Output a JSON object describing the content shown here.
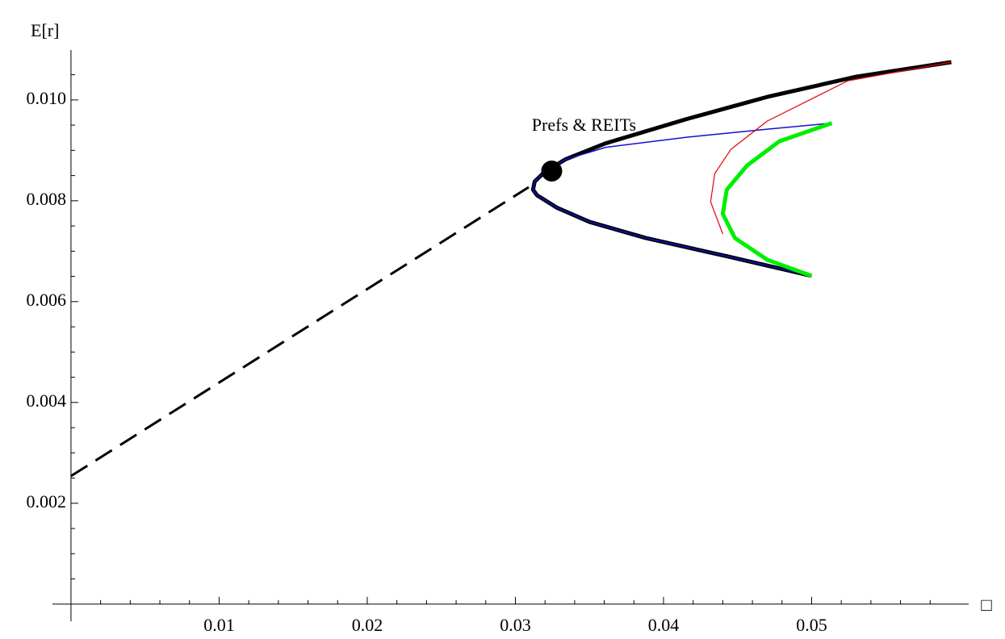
{
  "chart_data": {
    "type": "line",
    "y_label": "E[r]",
    "x_label": "□",
    "xlim": [
      -0.00125,
      0.0606
    ],
    "ylim": [
      -0.00034,
      0.01099
    ],
    "xticks": [
      0.01,
      0.02,
      0.03,
      0.04,
      0.05
    ],
    "yticks": [
      0.002,
      0.004,
      0.006,
      0.008,
      {
        "value": 0.01,
        "label": "0.010"
      }
    ],
    "xminorticks": [
      0.002,
      0.004,
      0.006,
      0.008,
      0.012,
      0.014,
      0.016,
      0.018,
      0.022,
      0.024,
      0.026,
      0.028,
      0.032,
      0.034,
      0.036,
      0.038,
      0.042,
      0.044,
      0.046,
      0.048,
      0.052,
      0.054,
      0.056,
      0.058
    ],
    "yminorticks": [
      0.0005,
      0.001,
      0.0015,
      0.0025,
      0.003,
      0.0035,
      0.0045,
      0.005,
      0.0055,
      0.0065,
      0.007,
      0.0075,
      0.0085,
      0.009,
      0.0095,
      0.0105
    ],
    "series": [
      {
        "color": "#000000",
        "dashed": true,
        "width": 3,
        "x": [
          0,
          0.0309
        ],
        "values": [
          0.00254,
          0.00827
        ]
      },
      {
        "color": "#000000",
        "dashed": false,
        "width": 5,
        "x": [
          0.05,
          0.04427,
          0.03882,
          0.03501,
          0.03282,
          0.03146,
          0.03119,
          0.0313,
          0.03201,
          0.03337,
          0.0361,
          0.04155,
          0.047,
          0.053,
          0.05943
        ],
        "values": [
          0.00651,
          0.0069,
          0.00726,
          0.00758,
          0.00786,
          0.00811,
          0.00822,
          0.00838,
          0.00858,
          0.00882,
          0.00914,
          0.00962,
          0.01006,
          0.01046,
          0.01075
        ]
      },
      {
        "color": "#1010cc",
        "dashed": false,
        "width": 1.5,
        "x": [
          0.05,
          0.04427,
          0.03882,
          0.03501,
          0.03282,
          0.03146,
          0.03119,
          0.0313,
          0.03201,
          0.03337,
          0.0361,
          0.04155,
          0.047,
          0.05136
        ],
        "values": [
          0.00651,
          0.0069,
          0.00726,
          0.00758,
          0.00786,
          0.00811,
          0.00822,
          0.00838,
          0.00858,
          0.00882,
          0.00906,
          0.00926,
          0.00942,
          0.00954
        ]
      },
      {
        "color": "#e00000",
        "dashed": false,
        "width": 1.2,
        "x": [
          0.044,
          0.04318,
          0.04346,
          0.04455,
          0.047,
          0.05245,
          0.05943
        ],
        "values": [
          0.00734,
          0.00798,
          0.00854,
          0.00902,
          0.00958,
          0.01038,
          0.01075
        ]
      },
      {
        "color": "#00ee00",
        "dashed": false,
        "width": 5,
        "x": [
          0.05,
          0.047,
          0.04482,
          0.044,
          0.04427,
          0.04564,
          0.04782,
          0.05136
        ],
        "values": [
          0.00651,
          0.00683,
          0.00726,
          0.00774,
          0.00822,
          0.0087,
          0.00918,
          0.00954
        ]
      }
    ],
    "point": {
      "x": 0.03245,
      "y": 0.00859,
      "label": "Prefs & REITs",
      "color": "#000000"
    }
  }
}
